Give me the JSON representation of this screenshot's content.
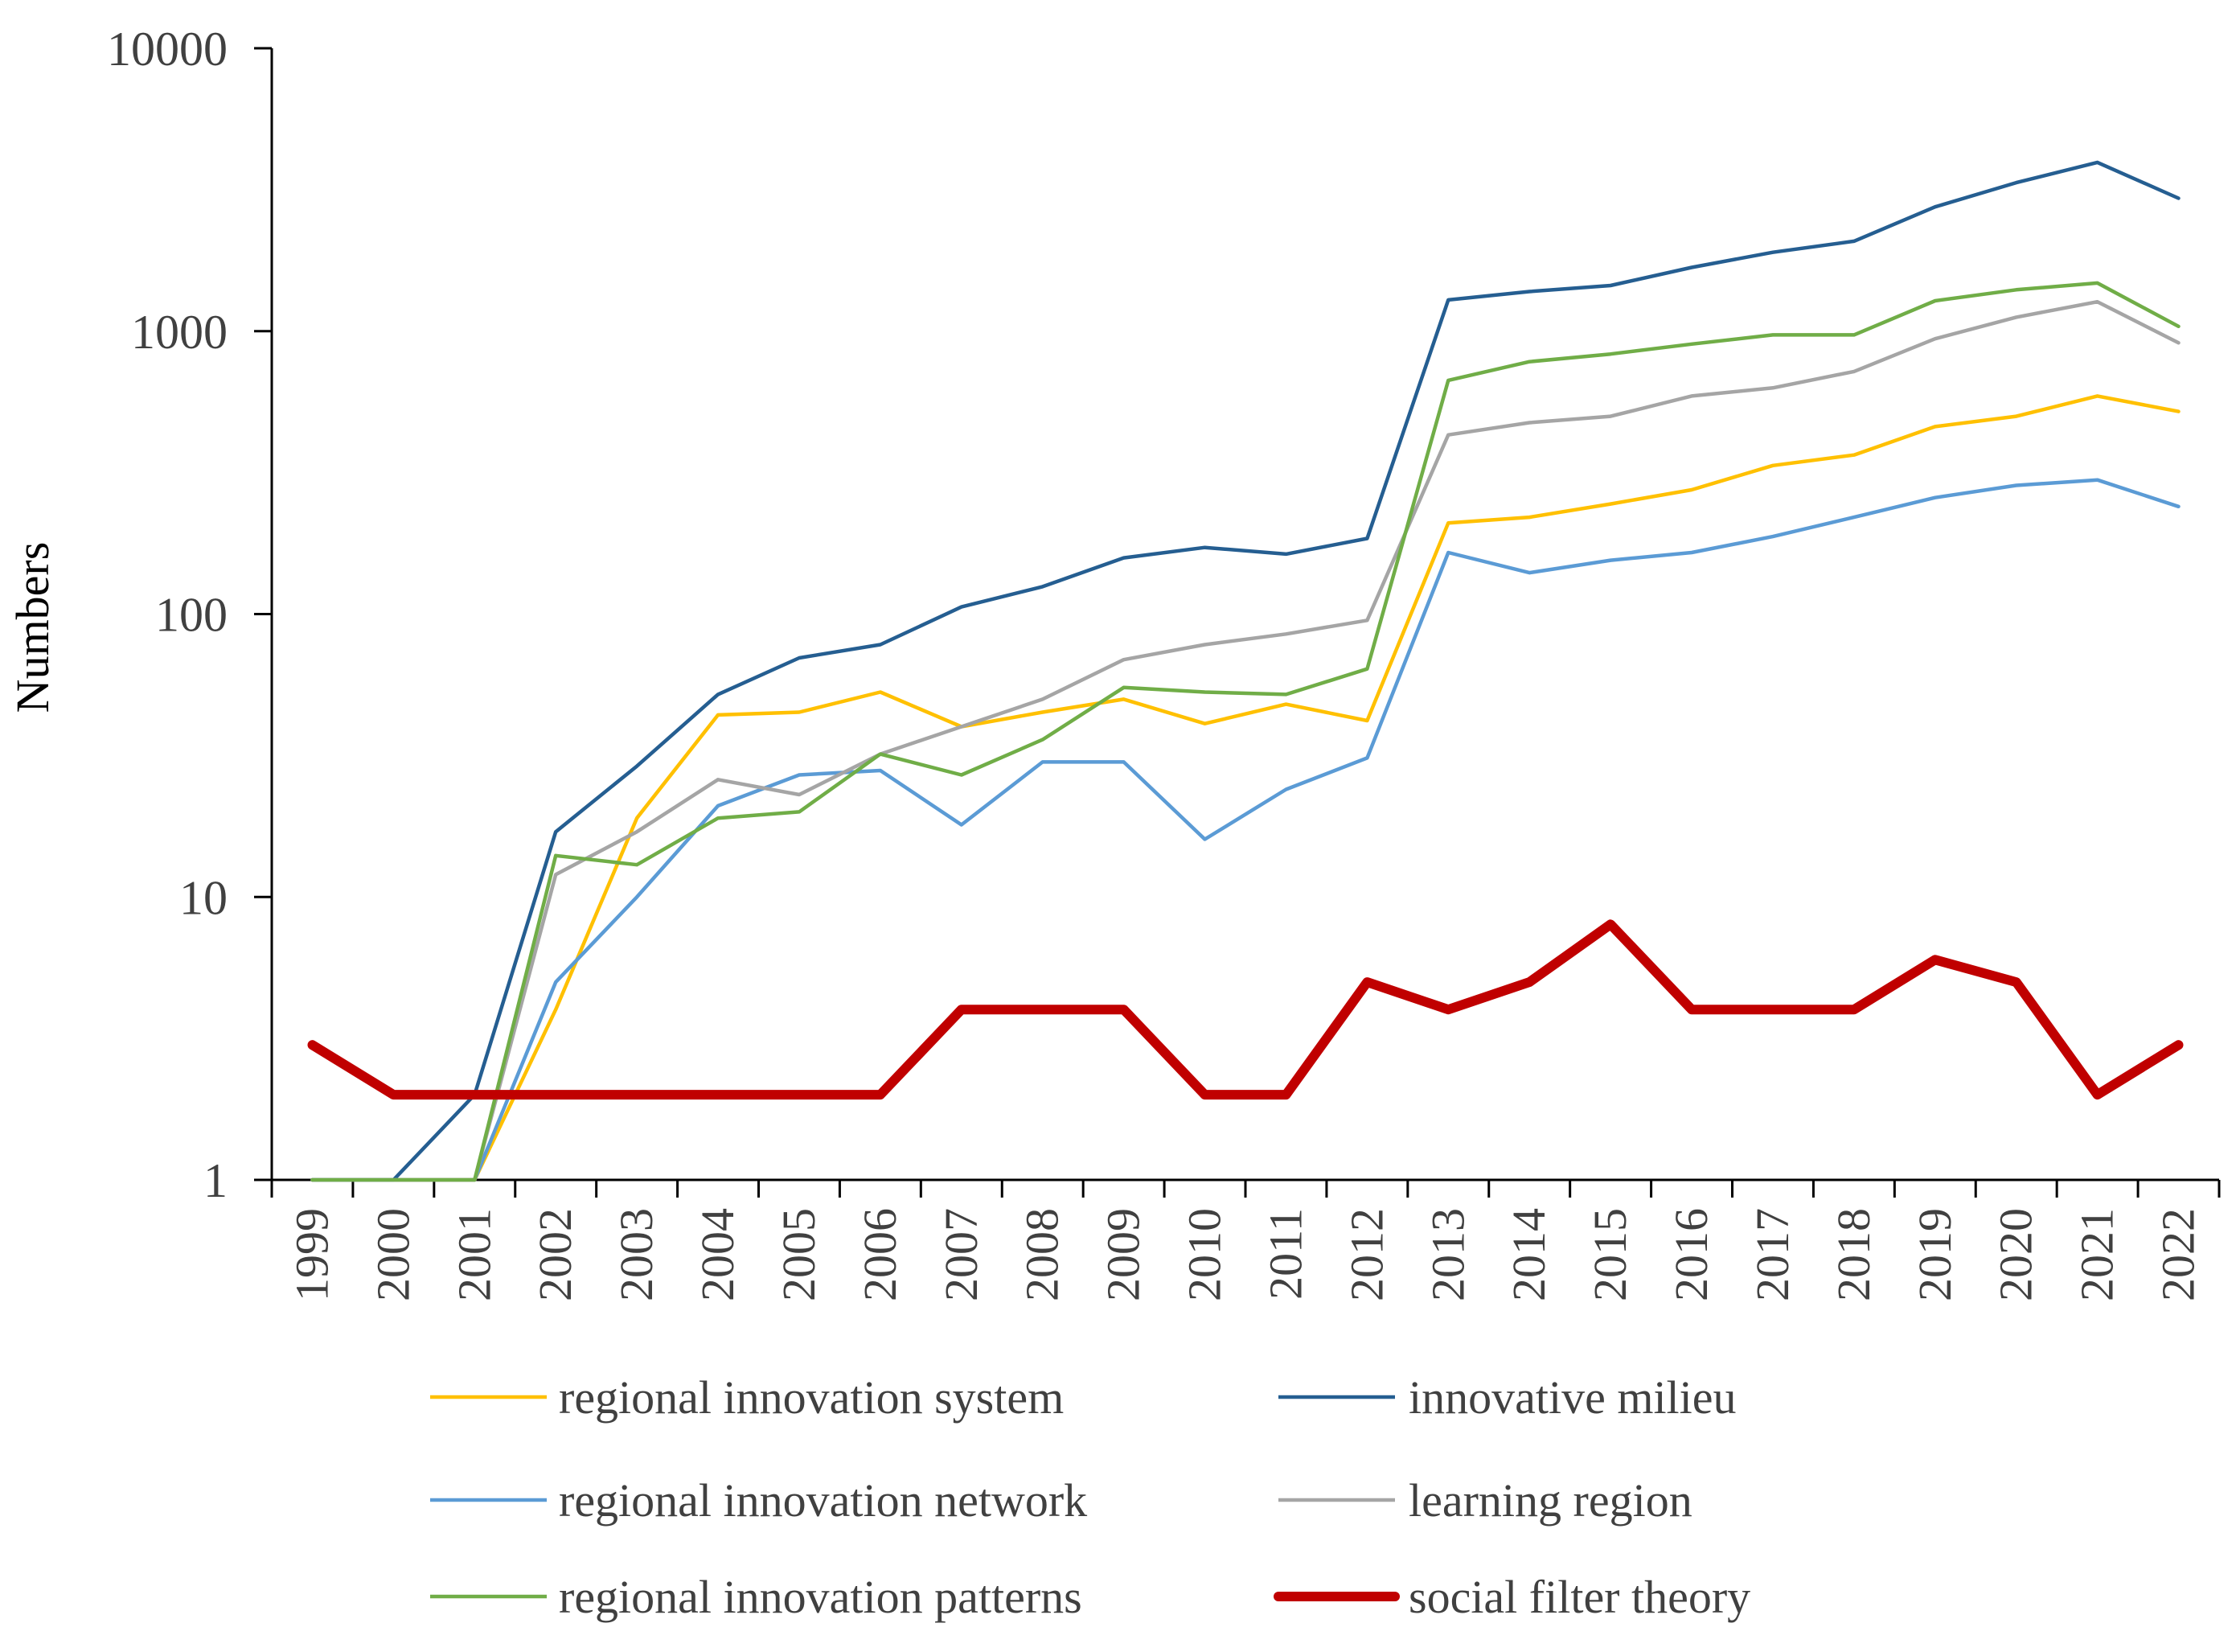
{
  "chart_data": {
    "type": "line",
    "title": "",
    "xlabel": "",
    "ylabel": "Numbers",
    "yscale": "log",
    "ylim": [
      1,
      10000
    ],
    "ytick_labels": [
      "1",
      "10",
      "100",
      "1000",
      "10000"
    ],
    "ytick_values": [
      1,
      10,
      100,
      1000,
      10000
    ],
    "grid": false,
    "legend_position": "bottom",
    "categories": [
      "1999",
      "2000",
      "2001",
      "2002",
      "2003",
      "2004",
      "2005",
      "2006",
      "2007",
      "2008",
      "2009",
      "2010",
      "2011",
      "2012",
      "2013",
      "2014",
      "2015",
      "2016",
      "2017",
      "2018",
      "2019",
      "2020",
      "2021",
      "2022"
    ],
    "series": [
      {
        "name": "regional innovation system",
        "color": "#FFC000",
        "values": [
          1,
          1,
          1,
          4,
          19,
          44,
          45,
          53,
          40,
          45,
          50,
          41,
          48,
          42,
          210,
          220,
          245,
          275,
          335,
          365,
          460,
          500,
          590,
          520
        ]
      },
      {
        "name": "innovative milieu",
        "color": "#255E91",
        "values": [
          1,
          1,
          2,
          17,
          29,
          52,
          70,
          78,
          106,
          125,
          158,
          172,
          163,
          185,
          1290,
          1380,
          1450,
          1680,
          1900,
          2080,
          2750,
          3350,
          3950,
          2950
        ]
      },
      {
        "name": "regional innovation network",
        "color": "#5B9BD5",
        "values": [
          1,
          1,
          1,
          5,
          10,
          21,
          27,
          28,
          18,
          30,
          30,
          16,
          24,
          31,
          165,
          140,
          155,
          165,
          188,
          220,
          258,
          285,
          298,
          240
        ]
      },
      {
        "name": "learning region",
        "color": "#A5A5A5",
        "values": [
          1,
          1,
          1,
          12,
          17,
          26,
          23,
          32,
          40,
          50,
          69,
          78,
          85,
          95,
          430,
          475,
          500,
          590,
          630,
          720,
          940,
          1120,
          1270,
          910
        ]
      },
      {
        "name": "regional innovation patterns",
        "color": "#70AD47",
        "values": [
          1,
          1,
          1,
          14,
          13,
          19,
          20,
          32,
          27,
          36,
          55,
          53,
          52,
          64,
          670,
          780,
          830,
          900,
          970,
          970,
          1280,
          1400,
          1480,
          1040
        ]
      },
      {
        "name": "social filter theory",
        "color": "#C00000",
        "values": [
          3,
          2,
          2,
          2,
          2,
          2,
          2,
          2,
          4,
          4,
          4,
          2,
          2,
          5,
          4,
          5,
          8,
          4,
          4,
          4,
          6,
          5,
          2,
          3
        ]
      }
    ]
  }
}
